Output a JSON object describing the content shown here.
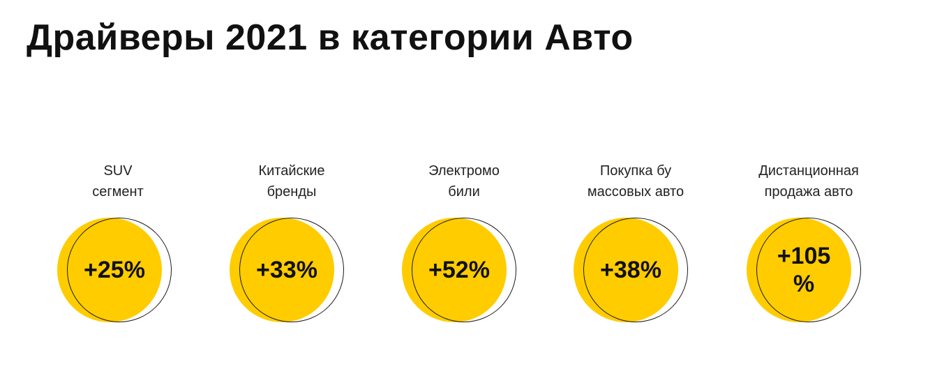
{
  "page": {
    "title": "Драйверы 2021 в категории Авто"
  },
  "colors": {
    "accent": "#ffcc00",
    "text": "#111111",
    "ring": "#1a1a1a"
  },
  "drivers": [
    {
      "label_line1": "SUV",
      "label_line2": "сегмент",
      "value": "+25%"
    },
    {
      "label_line1": "Китайские",
      "label_line2": "бренды",
      "value": "+33%"
    },
    {
      "label_line1": "Электромо",
      "label_line2": "били",
      "value": "+52%"
    },
    {
      "label_line1": "Покупка бу",
      "label_line2": "массовых авто",
      "value": "+38%"
    },
    {
      "label_line1": "Дистанционная",
      "label_line2": "продажа авто",
      "value_line1": "+105",
      "value_line2": "%"
    }
  ]
}
